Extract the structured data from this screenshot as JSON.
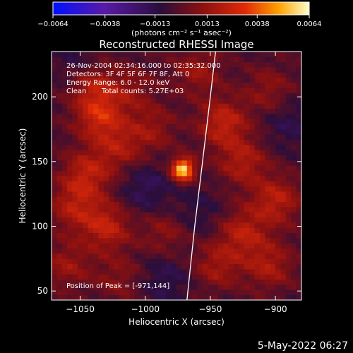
{
  "chart_data": {
    "type": "heatmap",
    "title": "Reconstructed RHESSI Image",
    "xlabel": "Heliocentric X (arcsec)",
    "ylabel": "Heliocentric Y (arcsec)",
    "xlim": [
      -1072,
      -880
    ],
    "ylim": [
      43,
      235
    ],
    "x_ticks": [
      -1050,
      -1000,
      -950,
      -900
    ],
    "x_tick_labels": [
      "−1050",
      "−1000",
      "−950",
      "−900"
    ],
    "y_ticks": [
      50,
      100,
      150,
      200
    ],
    "y_tick_labels": [
      "50",
      "100",
      "150",
      "200"
    ],
    "colorbar": {
      "range": [
        -0.0064,
        0.0064
      ],
      "ticks": [
        -0.0064,
        -0.0038,
        -0.0013,
        0.0013,
        0.0038,
        0.0064
      ],
      "tick_labels": [
        "−0.0064",
        "−0.0038",
        "−0.0013",
        "0.0013",
        "0.0038",
        "0.0064"
      ],
      "units_label": "(photons cm⁻² s⁻¹ asec⁻²)",
      "colors": [
        "#0010ff",
        "#5a1aa8",
        "#2a0e3a",
        "#8a1010",
        "#e02a08",
        "#ffa000",
        "#ffffcc"
      ]
    },
    "peak": {
      "x": -971,
      "y": 144,
      "value": 0.0064
    },
    "limb_curve": [
      [
        -968,
        43
      ],
      [
        -962,
        100
      ],
      [
        -956,
        150
      ],
      [
        -950,
        200
      ],
      [
        -946,
        235
      ]
    ],
    "blobs": [
      {
        "x": -1040,
        "y": 210,
        "value": 0.0022
      },
      {
        "x": -1035,
        "y": 185,
        "value": 0.0028
      },
      {
        "x": -1020,
        "y": 160,
        "value": 0.0018
      },
      {
        "x": -1045,
        "y": 140,
        "value": 0.0024
      },
      {
        "x": -1055,
        "y": 115,
        "value": 0.002
      },
      {
        "x": -1030,
        "y": 100,
        "value": 0.0025
      },
      {
        "x": -1010,
        "y": 205,
        "value": 0.0012
      },
      {
        "x": -995,
        "y": 175,
        "value": 0.0015
      },
      {
        "x": -985,
        "y": 95,
        "value": 0.0014
      },
      {
        "x": -960,
        "y": 220,
        "value": 0.0016
      },
      {
        "x": -940,
        "y": 180,
        "value": 0.0026
      },
      {
        "x": -925,
        "y": 150,
        "value": 0.0021
      },
      {
        "x": -905,
        "y": 205,
        "value": 0.0014
      },
      {
        "x": -900,
        "y": 120,
        "value": 0.0024
      },
      {
        "x": -925,
        "y": 95,
        "value": 0.0022
      },
      {
        "x": -905,
        "y": 70,
        "value": 0.002
      },
      {
        "x": -945,
        "y": 70,
        "value": 0.0018
      },
      {
        "x": -1020,
        "y": 60,
        "value": 0.0012
      },
      {
        "x": -1060,
        "y": 70,
        "value": 0.0016
      }
    ],
    "negatives": [
      {
        "x": -1000,
        "y": 130,
        "value": -0.0014
      },
      {
        "x": -985,
        "y": 60,
        "value": -0.0012
      },
      {
        "x": -1050,
        "y": 225,
        "value": -0.001
      },
      {
        "x": -960,
        "y": 110,
        "value": -0.0009
      },
      {
        "x": -890,
        "y": 180,
        "value": -0.0011
      }
    ]
  },
  "annotations": {
    "time_range": "26-Nov-2004 02:34:16.000 to 02:35:32.000",
    "detectors": "Detectors: 3F 4F 5F 6F 7F 8F, Att 0",
    "energy": "Energy Range: 6.0 - 12.0 keV",
    "clean_label": "Clean",
    "total_counts": "Total counts: 5.27E+03",
    "peak_position": "Position of Peak = [-971,144]"
  },
  "footer": {
    "date": "5-May-2022 06:27"
  }
}
